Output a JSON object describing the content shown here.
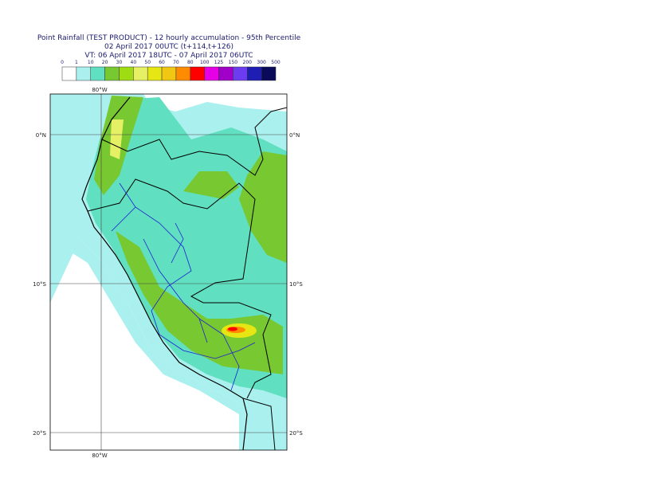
{
  "header": {
    "title": "Point Rainfall (TEST PRODUCT) - 12 hourly accumulation - 95th Percentile",
    "base_time": "02 April 2017 00UTC (t+114,t+126)",
    "valid_time": "VT: 06 April 2017 18UTC - 07 April 2017 06UTC"
  },
  "legend": {
    "labels": [
      0,
      1,
      10,
      20,
      30,
      40,
      50,
      60,
      70,
      80,
      100,
      125,
      150,
      200,
      300,
      500
    ],
    "colors": [
      "#ffffff",
      "#aaf0ee",
      "#60e0c0",
      "#78c832",
      "#a0dc14",
      "#e6f064",
      "#e6e614",
      "#f0c814",
      "#ff8c00",
      "#ff0000",
      "#e600e6",
      "#a000c8",
      "#6e3cf0",
      "#1e1eb4",
      "#0a0a5a"
    ]
  },
  "map": {
    "lat_labels": [
      "0°N",
      "10°S",
      "20°S"
    ],
    "lon_labels": [
      "80°W"
    ]
  }
}
